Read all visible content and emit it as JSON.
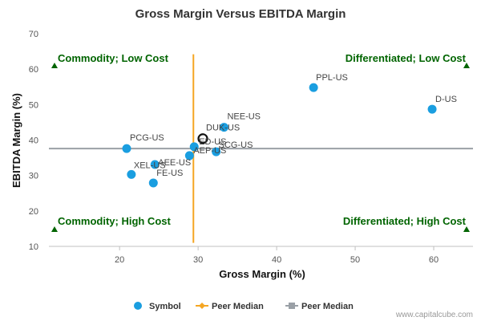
{
  "chart_data": {
    "type": "scatter",
    "title": "Gross Margin Versus EBITDA Margin",
    "xlabel": "Gross Margin (%)",
    "ylabel": "EBITDA Margin (%)",
    "xlim": [
      11,
      65
    ],
    "ylim": [
      10,
      70
    ],
    "xticks": [
      20,
      30,
      40,
      50,
      60
    ],
    "yticks": [
      10,
      20,
      30,
      40,
      50,
      60,
      70
    ],
    "grid": false,
    "colors": {
      "symbol": "#1a9ee0",
      "peer_median_x": "#f5a623",
      "peer_median_y": "#9aa0a6",
      "quadrant": "#006400"
    },
    "points": [
      {
        "label": "PPL-US",
        "x": 44.7,
        "y": 54.8
      },
      {
        "label": "D-US",
        "x": 59.8,
        "y": 48.7
      },
      {
        "label": "NEE-US",
        "x": 33.3,
        "y": 43.6
      },
      {
        "label": "DUK-US",
        "x": 30.6,
        "y": 40.4,
        "highlight": true
      },
      {
        "label": "ED-US",
        "x": 29.5,
        "y": 38.1
      },
      {
        "label": "SCG-US",
        "x": 32.3,
        "y": 36.7
      },
      {
        "label": "PCG-US",
        "x": 20.9,
        "y": 37.6
      },
      {
        "label": "AEP-US",
        "x": 28.9,
        "y": 35.6
      },
      {
        "label": "AEE-US",
        "x": 24.5,
        "y": 33.1
      },
      {
        "label": "XEL-US",
        "x": 21.5,
        "y": 30.3
      },
      {
        "label": "FE-US",
        "x": 24.3,
        "y": 27.9
      }
    ],
    "peer_median": {
      "x": 29.4,
      "y": 37.6,
      "x_range": [
        15,
        61.5
      ],
      "y_range": [
        11,
        64.2
      ]
    },
    "quadrants": [
      {
        "label": "Commodity; Low Cost",
        "position": "top-left"
      },
      {
        "label": "Differentiated; Low Cost",
        "position": "top-right"
      },
      {
        "label": "Commodity; High Cost",
        "position": "bottom-left"
      },
      {
        "label": "Differentiated; High Cost",
        "position": "bottom-right"
      }
    ],
    "legend": {
      "position": "bottom",
      "items": [
        {
          "label": "Symbol",
          "kind": "circle"
        },
        {
          "label": "Peer Median",
          "kind": "diamond-line"
        },
        {
          "label": "Peer Median",
          "kind": "square-line"
        }
      ]
    }
  },
  "credit": "www.capitalcube.com"
}
